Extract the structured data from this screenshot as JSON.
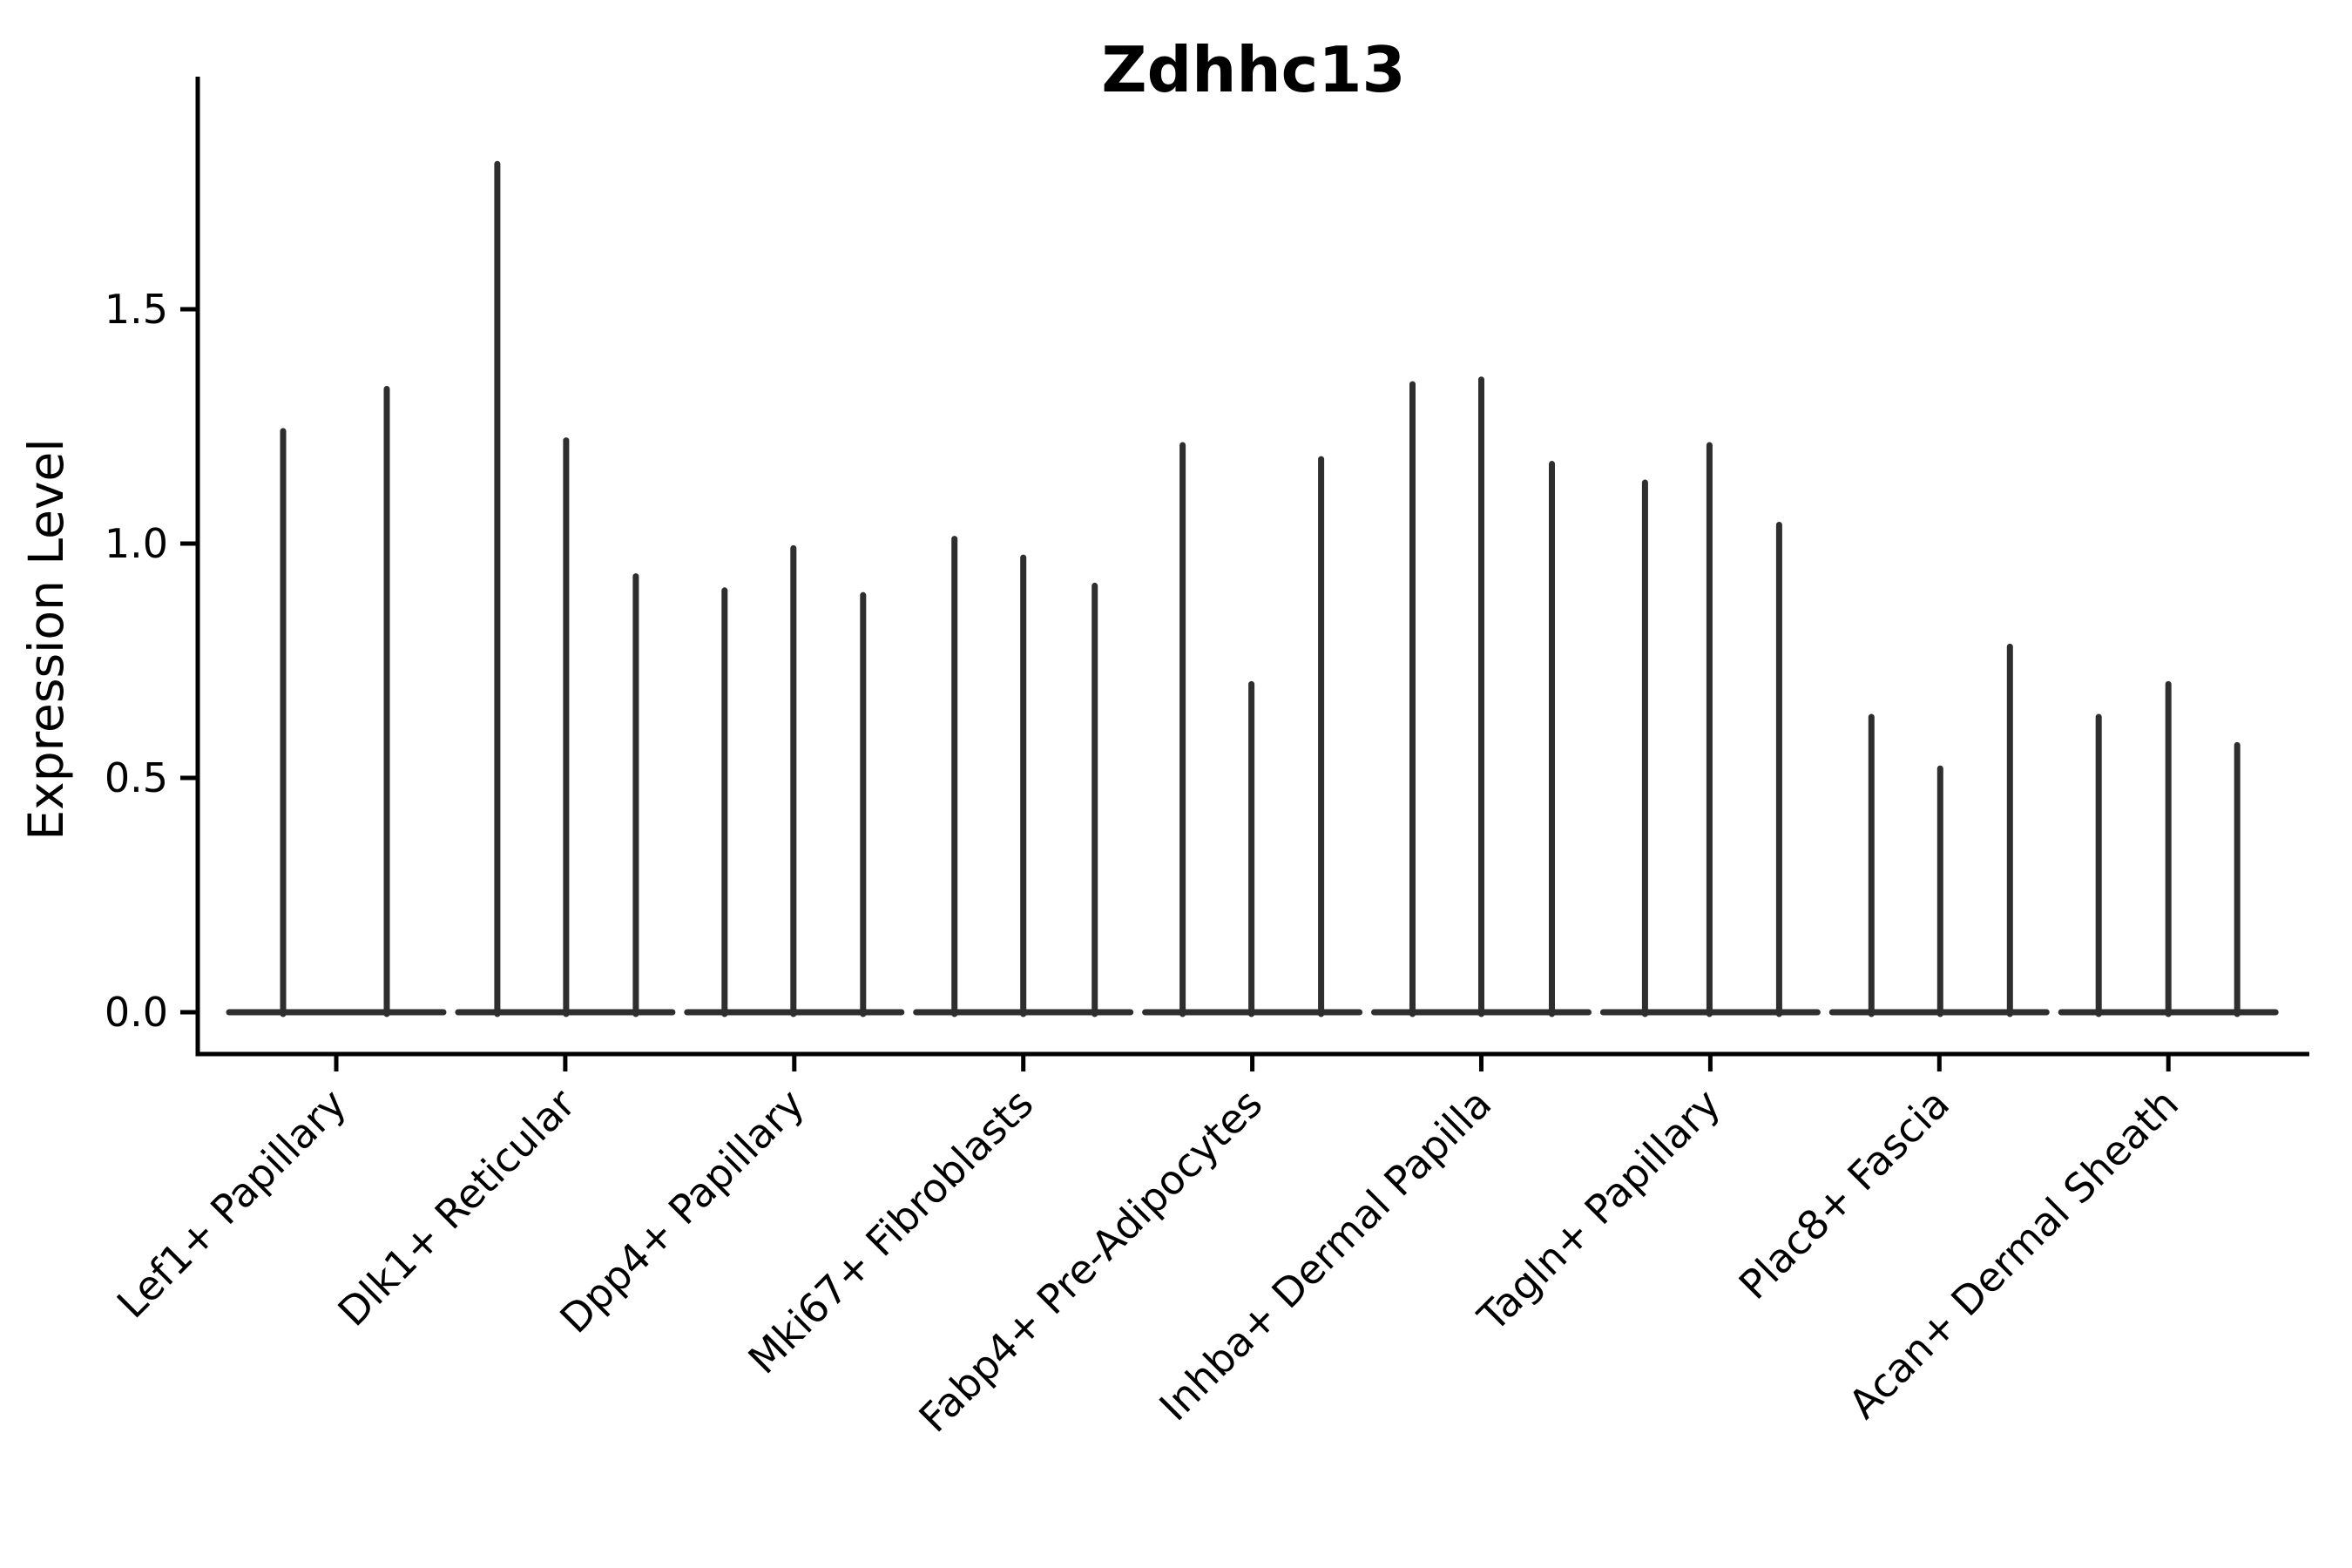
{
  "title": "Zdhhc13",
  "y_axis": {
    "label": "Expression Level",
    "tick_labels": [
      "0.0",
      "0.5",
      "1.0",
      "1.5"
    ],
    "tick_values": [
      0.0,
      0.5,
      1.0,
      1.5
    ]
  },
  "colors": {
    "background": "#ffffff",
    "violin_stroke": "#2e2e2e",
    "axis_line": "#000000",
    "text": "#000000"
  },
  "chart_data": {
    "type": "violin",
    "title": "Zdhhc13",
    "xlabel": "",
    "ylabel": "Expression Level",
    "ylim": [
      -0.09,
      1.99
    ],
    "grid": false,
    "legend_position": "none",
    "note": "Needle-thin violins: nearly all density at 0 (flat baseline lens per group), narrow spikes reach each violin's maximum expression value.",
    "categories": [
      "Lef1+ Papillary",
      "Dlk1+ Reticular",
      "Dpp4+ Papillary",
      "Mki67+ Fibroblasts",
      "Fabp4+ Pre-Adipocytes",
      "Inhba+ Dermal Papilla",
      "Tagln+ Papillary",
      "Plac8+ Fascia",
      "Acan+ Dermal Sheath"
    ],
    "series": [
      {
        "category": "Lef1+ Papillary",
        "violins": [
          {
            "offset": -61,
            "peak": 1.24
          },
          {
            "offset": 58,
            "peak": 1.33
          }
        ]
      },
      {
        "category": "Dlk1+ Reticular",
        "violins": [
          {
            "offset": -78,
            "peak": 1.81
          },
          {
            "offset": 1,
            "peak": 1.22
          },
          {
            "offset": 81,
            "peak": 0.93
          }
        ]
      },
      {
        "category": "Dpp4+ Papillary",
        "violins": [
          {
            "offset": -80,
            "peak": 0.9
          },
          {
            "offset": -1,
            "peak": 0.99
          },
          {
            "offset": 79,
            "peak": 0.89
          }
        ]
      },
      {
        "category": "Mki67+ Fibroblasts",
        "violins": [
          {
            "offset": -79,
            "peak": 1.01
          },
          {
            "offset": 0,
            "peak": 0.97
          },
          {
            "offset": 82,
            "peak": 0.91
          }
        ]
      },
      {
        "category": "Fabp4+ Pre-Adipocytes",
        "violins": [
          {
            "offset": -80,
            "peak": 1.21
          },
          {
            "offset": -1,
            "peak": 0.7
          },
          {
            "offset": 79,
            "peak": 1.18
          }
        ]
      },
      {
        "category": "Inhba+ Dermal Papilla",
        "violins": [
          {
            "offset": -79,
            "peak": 1.34
          },
          {
            "offset": 0,
            "peak": 1.35
          },
          {
            "offset": 81,
            "peak": 1.17
          }
        ]
      },
      {
        "category": "Tagln+ Papillary",
        "violins": [
          {
            "offset": -75,
            "peak": 1.13
          },
          {
            "offset": -1,
            "peak": 1.21
          },
          {
            "offset": 79,
            "peak": 1.04
          }
        ]
      },
      {
        "category": "Plac8+ Fascia",
        "violins": [
          {
            "offset": -78,
            "peak": 0.63
          },
          {
            "offset": 1,
            "peak": 0.52
          },
          {
            "offset": 81,
            "peak": 0.78
          }
        ]
      },
      {
        "category": "Acan+ Dermal Sheath",
        "violins": [
          {
            "offset": -80,
            "peak": 0.63
          },
          {
            "offset": 0,
            "peak": 0.7
          },
          {
            "offset": 79,
            "peak": 0.57
          }
        ]
      }
    ]
  }
}
